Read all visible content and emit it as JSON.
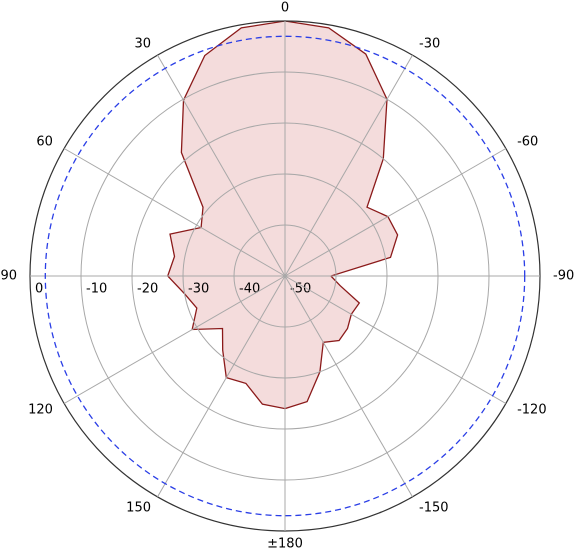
{
  "chart_data": {
    "type": "polar",
    "theta": [
      -180,
      -170,
      -160,
      -150,
      -140,
      -130,
      -120,
      -110,
      -100,
      -90,
      -80,
      -70,
      -60,
      -50,
      -40,
      -30,
      -20,
      -10,
      0,
      10,
      20,
      30,
      40,
      50,
      60,
      70,
      80,
      90,
      100,
      110,
      120,
      130,
      140,
      150,
      160,
      170
    ],
    "values": [
      -24,
      -25,
      -30,
      -35,
      -33.5,
      -34,
      -35,
      -34.5,
      -39,
      -41,
      -29,
      -26.5,
      -26.7,
      -29,
      -20,
      -10,
      -3.7,
      -0.6,
      0,
      -0.6,
      -4,
      -10.2,
      -18.4,
      -29,
      -31,
      -26,
      -28,
      -27,
      -30,
      -31.6,
      -29,
      -34,
      -31,
      -27,
      -27.6,
      -24.5
    ],
    "color": "#8b1a1a",
    "fill_color": "#f2d6d6",
    "reference_level": -3,
    "reference_color": "#2a3ee6",
    "rlim": [
      -50,
      0
    ],
    "rticks": [
      -50,
      -40,
      -30,
      -20,
      -10,
      0
    ],
    "thetaticks": [
      0,
      30,
      60,
      90,
      120,
      150,
      {
        "value": 180,
        "label": "±180"
      },
      -150,
      -120,
      -90,
      -60,
      -30
    ],
    "grid": true
  }
}
